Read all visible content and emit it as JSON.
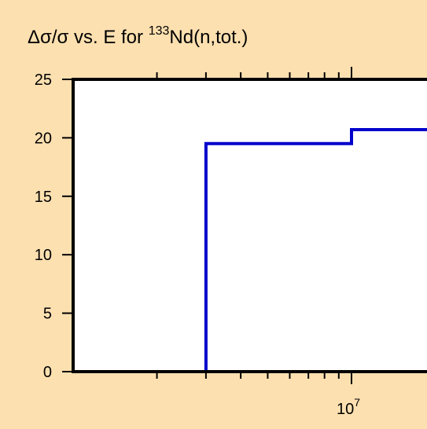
{
  "chart_data": {
    "type": "line",
    "step": true,
    "title": {
      "prefix": "Δσ/σ vs. E for ",
      "superscript": "133",
      "suffix": "Nd(n,tot.)"
    },
    "xlabel": "",
    "ylabel": "",
    "x_scale": "log",
    "ylim": [
      0,
      25
    ],
    "y_ticks": [
      "0",
      "5",
      "10",
      "15",
      "20",
      "25"
    ],
    "x_tick_labels": [
      {
        "value": 10000000,
        "base": "10",
        "exponent": "7"
      }
    ],
    "grid": false,
    "line_color": "#0000cc",
    "plot_background": "#ffffff",
    "page_background": "#fde0b0",
    "series": [
      {
        "x": [
          3000000,
          3000000,
          10000000,
          10000000,
          20000000
        ],
        "y": [
          0,
          19.5,
          19.5,
          20.7,
          20.7
        ]
      }
    ]
  }
}
